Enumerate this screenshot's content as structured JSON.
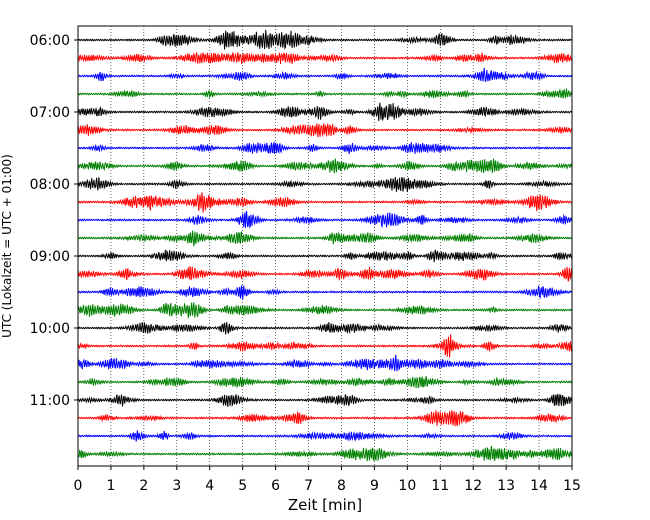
{
  "chart_data": {
    "type": "line",
    "title": "",
    "xlabel": "Zeit  [min]",
    "ylabel": "UTC (Lokalzeit = UTC + 01:00)",
    "xlim": [
      0,
      15
    ],
    "x_ticks": [
      0,
      1,
      2,
      3,
      4,
      5,
      6,
      7,
      8,
      9,
      10,
      11,
      12,
      13,
      14,
      15
    ],
    "y_ticks": [
      "06:00",
      "07:00",
      "08:00",
      "09:00",
      "10:00",
      "11:00"
    ],
    "grid": "vertical dotted",
    "trace_interval_min": 15,
    "trace_colors": [
      "#000000",
      "#ff0000",
      "#0000ff",
      "#008000"
    ],
    "traces": [
      {
        "start": "06:00"
      },
      {
        "start": "06:15"
      },
      {
        "start": "06:30"
      },
      {
        "start": "06:45"
      },
      {
        "start": "07:00"
      },
      {
        "start": "07:15"
      },
      {
        "start": "07:30"
      },
      {
        "start": "07:45"
      },
      {
        "start": "08:00"
      },
      {
        "start": "08:15"
      },
      {
        "start": "08:30"
      },
      {
        "start": "08:45"
      },
      {
        "start": "09:00"
      },
      {
        "start": "09:15"
      },
      {
        "start": "09:30"
      },
      {
        "start": "09:45"
      },
      {
        "start": "10:00"
      },
      {
        "start": "10:15"
      },
      {
        "start": "10:30"
      },
      {
        "start": "10:45"
      },
      {
        "start": "11:00"
      },
      {
        "start": "11:15"
      },
      {
        "start": "11:30"
      },
      {
        "start": "11:45"
      }
    ]
  }
}
